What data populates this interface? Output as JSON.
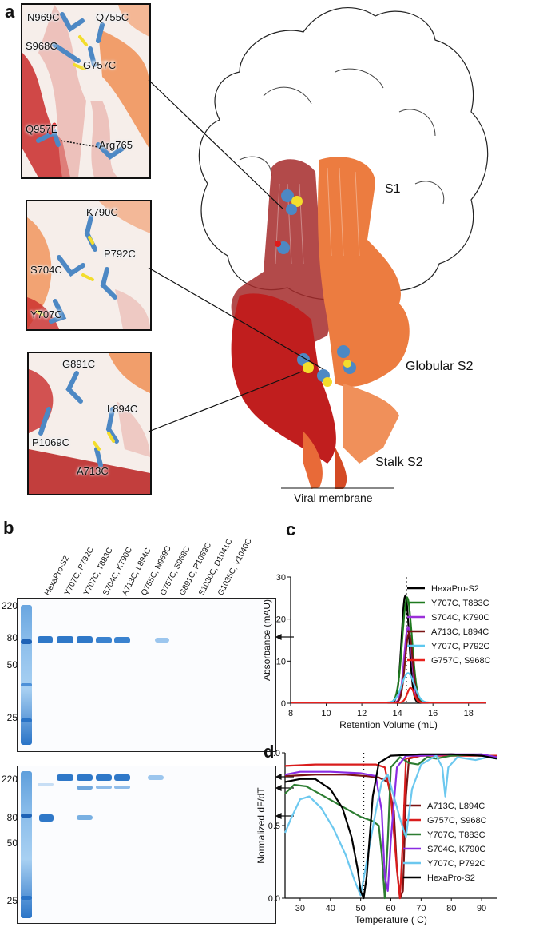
{
  "panel_a": {
    "label": "a",
    "insets": [
      {
        "residues": [
          "N969C",
          "Q755C",
          "S968C",
          "G757C",
          "Q957E",
          "Arg765"
        ]
      },
      {
        "residues": [
          "K790C",
          "P792C",
          "S704C",
          "Y707C"
        ]
      },
      {
        "residues": [
          "G891C",
          "L894C",
          "P1069C",
          "A713C"
        ]
      }
    ],
    "domain_labels": [
      "S1",
      "Globular S2",
      "Stalk S2"
    ],
    "membrane_label": "Viral membrane"
  },
  "panel_b": {
    "label": "b",
    "lanes": [
      "HexaPro-S2",
      "Y707C, P792C",
      "Y707C, T883C",
      "S704C, K790C",
      "A713C, L894C",
      "Q755C, N969C",
      "G757C, S968C",
      "G891C, P1069C",
      "S1030C, D1041C",
      "G1035C, V1040C"
    ],
    "gel_top": {
      "markers": [
        "220",
        "80",
        "50",
        "25"
      ],
      "arrow_marker": "80"
    },
    "gel_bottom": {
      "markers": [
        "220",
        "80",
        "50",
        "25"
      ],
      "arrow_markers": [
        "220",
        "220",
        "80"
      ]
    },
    "colors": {
      "band": "#2f78c8",
      "ladder": "#2a74c7"
    }
  },
  "chart_data": [
    {
      "panel": "c",
      "type": "line",
      "xlabel": "Retention Volume (mL)",
      "ylabel": "Absorbance (mAU)",
      "xlim": [
        8,
        19
      ],
      "ylim": [
        0,
        30
      ],
      "xticks": [
        8,
        10,
        12,
        14,
        16,
        18
      ],
      "yticks": [
        0,
        10,
        20,
        30
      ],
      "vline_x": 14.5,
      "legend_position": "right",
      "series": [
        {
          "name": "HexaPro-S2",
          "color": "#000000",
          "peak_x": 14.45,
          "peak_y": 25.5,
          "width": 0.55
        },
        {
          "name": "Y707C, T883C",
          "color": "#1f7a1f",
          "peak_x": 14.55,
          "peak_y": 25.0,
          "width": 0.7
        },
        {
          "name": "S704C, K790C",
          "color": "#9b30d9",
          "peak_x": 14.6,
          "peak_y": 18.0,
          "width": 0.55
        },
        {
          "name": "A713C, L894C",
          "color": "#7a1414",
          "peak_x": 14.65,
          "peak_y": 16.5,
          "width": 0.55
        },
        {
          "name": "Y707C, P792C",
          "color": "#5ec8ef",
          "peak_x": 14.6,
          "peak_y": 7.0,
          "width": 0.9
        },
        {
          "name": "G757C, S968C",
          "color": "#e8201c",
          "peak_x": 14.75,
          "peak_y": 3.5,
          "width": 0.5
        }
      ]
    },
    {
      "panel": "d",
      "type": "line",
      "xlabel": "Temperature ( C)",
      "ylabel": "Normalized dF/dT",
      "xlim": [
        25,
        95
      ],
      "ylim": [
        0,
        1
      ],
      "xticks": [
        30,
        40,
        50,
        60,
        70,
        80,
        90
      ],
      "yticks": [
        0.0,
        0.5,
        1.0
      ],
      "vline_x": 51,
      "legend_position": "bottom-right",
      "series": [
        {
          "name": "A713C, L894C",
          "color": "#7a1414",
          "points": [
            [
              25,
              0.84
            ],
            [
              35,
              0.85
            ],
            [
              45,
              0.85
            ],
            [
              52,
              0.84
            ],
            [
              56,
              0.83
            ],
            [
              59,
              0.8
            ],
            [
              61,
              0.6
            ],
            [
              62,
              0.2
            ],
            [
              63,
              0.0
            ],
            [
              64,
              0.05
            ],
            [
              65,
              0.7
            ],
            [
              66,
              0.96
            ],
            [
              70,
              0.98
            ],
            [
              80,
              0.99
            ],
            [
              90,
              0.98
            ],
            [
              95,
              0.97
            ]
          ]
        },
        {
          "name": "G757C, S968C",
          "color": "#d91c1c",
          "points": [
            [
              25,
              0.91
            ],
            [
              35,
              0.92
            ],
            [
              45,
              0.92
            ],
            [
              55,
              0.92
            ],
            [
              58,
              0.9
            ],
            [
              60,
              0.7
            ],
            [
              62,
              0.2
            ],
            [
              63,
              0.0
            ],
            [
              64,
              0.4
            ],
            [
              65,
              0.96
            ],
            [
              70,
              0.98
            ],
            [
              80,
              0.98
            ],
            [
              95,
              0.98
            ]
          ]
        },
        {
          "name": "Y707C, T883C",
          "color": "#2d7d32",
          "points": [
            [
              25,
              0.72
            ],
            [
              28,
              0.78
            ],
            [
              32,
              0.77
            ],
            [
              38,
              0.7
            ],
            [
              44,
              0.63
            ],
            [
              50,
              0.56
            ],
            [
              54,
              0.53
            ],
            [
              56,
              0.5
            ],
            [
              57,
              0.3
            ],
            [
              58,
              0.0
            ],
            [
              59,
              0.4
            ],
            [
              60,
              0.9
            ],
            [
              63,
              0.97
            ],
            [
              66,
              0.93
            ],
            [
              69,
              0.92
            ],
            [
              72,
              0.97
            ],
            [
              75,
              0.96
            ],
            [
              80,
              0.98
            ],
            [
              90,
              0.99
            ],
            [
              95,
              0.97
            ]
          ]
        },
        {
          "name": "S704C, K790C",
          "color": "#8a2be2",
          "points": [
            [
              25,
              0.85
            ],
            [
              30,
              0.87
            ],
            [
              40,
              0.87
            ],
            [
              50,
              0.86
            ],
            [
              55,
              0.84
            ],
            [
              57,
              0.6
            ],
            [
              58,
              0.15
            ],
            [
              59,
              0.05
            ],
            [
              60,
              0.4
            ],
            [
              62,
              0.9
            ],
            [
              65,
              0.98
            ],
            [
              70,
              0.98
            ],
            [
              80,
              0.99
            ],
            [
              90,
              0.99
            ],
            [
              95,
              0.97
            ]
          ]
        },
        {
          "name": "Y707C, P792C",
          "color": "#6cc8ef",
          "points": [
            [
              25,
              0.45
            ],
            [
              27,
              0.55
            ],
            [
              30,
              0.68
            ],
            [
              33,
              0.7
            ],
            [
              37,
              0.62
            ],
            [
              41,
              0.48
            ],
            [
              45,
              0.3
            ],
            [
              48,
              0.12
            ],
            [
              50,
              0.02
            ],
            [
              52,
              0.25
            ],
            [
              55,
              0.6
            ],
            [
              57,
              0.8
            ],
            [
              59,
              0.85
            ],
            [
              61,
              0.7
            ],
            [
              63,
              0.55
            ],
            [
              65,
              0.42
            ],
            [
              67,
              0.75
            ],
            [
              70,
              0.92
            ],
            [
              75,
              0.98
            ],
            [
              77,
              0.9
            ],
            [
              78,
              0.7
            ],
            [
              79,
              0.9
            ],
            [
              82,
              0.97
            ],
            [
              88,
              0.95
            ],
            [
              92,
              0.97
            ],
            [
              95,
              0.96
            ]
          ]
        },
        {
          "name": "HexaPro-S2",
          "color": "#000000",
          "points": [
            [
              25,
              0.8
            ],
            [
              30,
              0.82
            ],
            [
              35,
              0.82
            ],
            [
              40,
              0.75
            ],
            [
              44,
              0.62
            ],
            [
              47,
              0.42
            ],
            [
              49,
              0.2
            ],
            [
              50,
              0.05
            ],
            [
              51,
              0.0
            ],
            [
              52,
              0.15
            ],
            [
              54,
              0.7
            ],
            [
              56,
              0.93
            ],
            [
              60,
              0.98
            ],
            [
              70,
              0.99
            ],
            [
              80,
              0.99
            ],
            [
              90,
              0.98
            ],
            [
              95,
              0.96
            ]
          ]
        }
      ]
    }
  ],
  "panel_c_label": "c",
  "panel_d_label": "d"
}
